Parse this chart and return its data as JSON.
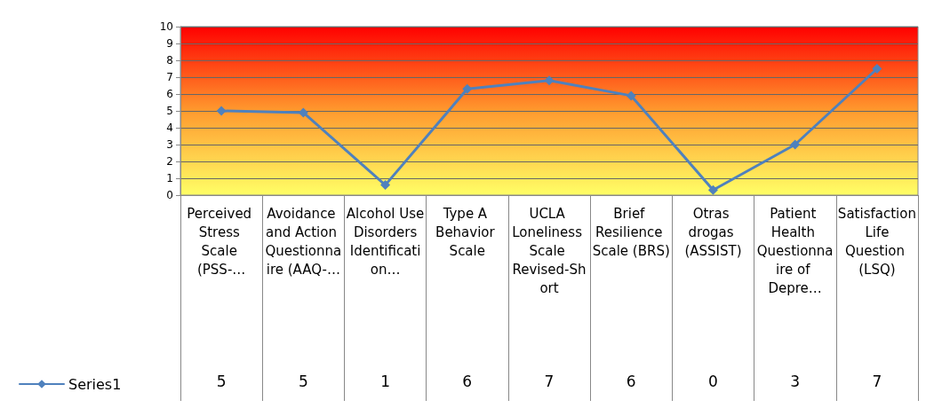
{
  "chart_data": {
    "type": "line",
    "categories": [
      "Perceived Stress Scale (PSS-…",
      "Avoidance and Action Questionnaire (AAQ-…",
      "Alcohol Use Disorders Identification…",
      "Type A Behavior Scale",
      "UCLA Loneliness Scale Revised-Short",
      "Brief Resilience Scale (BRS)",
      "Otras drogas (ASSIST)",
      "Patient Health Questionnaire of Depre…",
      "Satisfaction Life Question (LSQ)"
    ],
    "series": [
      {
        "name": "Series1",
        "color": "#4f81bd",
        "values": [
          5.0,
          4.9,
          0.6,
          6.3,
          6.8,
          5.9,
          0.3,
          3.0,
          7.5
        ],
        "value_labels": [
          "5",
          "5",
          "1",
          "6",
          "7",
          "6",
          "0",
          "3",
          "7"
        ]
      }
    ],
    "ylim": [
      0,
      10
    ],
    "yticks": [
      0,
      1,
      2,
      3,
      4,
      5,
      6,
      7,
      8,
      9,
      10
    ],
    "grid": "y",
    "legend": "bottom left",
    "marker": "diamond",
    "line_style": "solid"
  }
}
